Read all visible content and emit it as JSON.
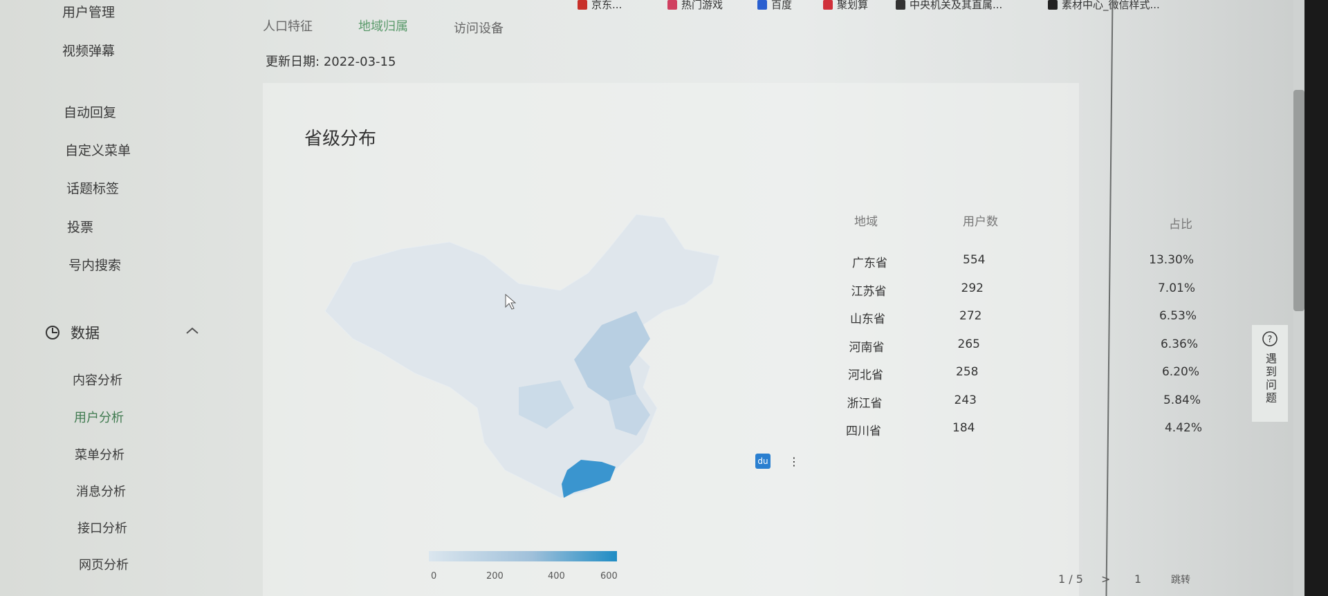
{
  "bookmarks": [
    {
      "label": "京东...",
      "color": "#c8302a"
    },
    {
      "label": "热门游戏",
      "color": "#d04060"
    },
    {
      "label": "百度",
      "color": "#2a5fd0"
    },
    {
      "label": "聚划算",
      "color": "#d0303a"
    },
    {
      "label": "中央机关及其直属...",
      "color": "#333333"
    },
    {
      "label": "素材中心_微信样式...",
      "color": "#222222"
    }
  ],
  "sidebar": {
    "top_items": [
      "用户管理",
      "视频弹幕"
    ],
    "items": [
      "自动回复",
      "自定义菜单",
      "话题标签",
      "投票",
      "号内搜索"
    ],
    "section": {
      "label": "数据",
      "icon": "pie-chart-icon",
      "expanded": true
    },
    "sub_items": [
      "内容分析",
      "用户分析",
      "菜单分析",
      "消息分析",
      "接口分析",
      "网页分析"
    ],
    "active_sub": "用户分析"
  },
  "tabs": [
    "人口特征",
    "地域归属",
    "访问设备"
  ],
  "active_tab": "地域归属",
  "update": {
    "label": "更新日期:",
    "date": "2022-03-15"
  },
  "card": {
    "title": "省级分布"
  },
  "chart_data": {
    "type": "heatmap",
    "legend": {
      "ticks": [
        "0",
        "200",
        "400",
        "600"
      ],
      "range": [
        0,
        600
      ],
      "color_low": "#dbe6ee",
      "color_high": "#1f8cc4"
    },
    "highlight": "广东省"
  },
  "table": {
    "headers": [
      "地域",
      "用户数",
      "占比"
    ],
    "rows": [
      [
        "广东省",
        "554",
        "13.30%"
      ],
      [
        "江苏省",
        "292",
        "7.01%"
      ],
      [
        "山东省",
        "272",
        "6.53%"
      ],
      [
        "河南省",
        "265",
        "6.36%"
      ],
      [
        "河北省",
        "258",
        "6.20%"
      ],
      [
        "浙江省",
        "243",
        "5.84%"
      ],
      [
        "四川省",
        "184",
        "4.42%"
      ]
    ]
  },
  "pagination": {
    "current": "1 / 5",
    "next": ">",
    "input": "1",
    "go": "跳转"
  },
  "help": {
    "label": "遇到问题",
    "icon": "question-icon"
  },
  "du_badge": "du"
}
